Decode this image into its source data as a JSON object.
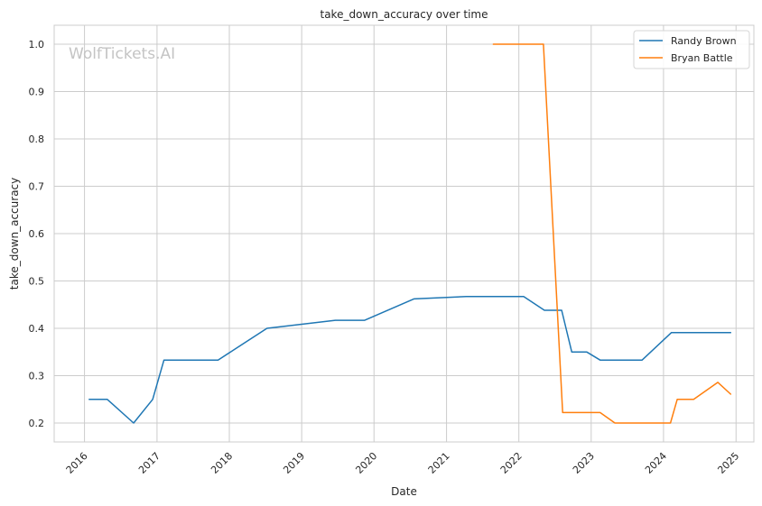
{
  "chart_data": {
    "type": "line",
    "title": "take_down_accuracy over time",
    "xlabel": "Date",
    "ylabel": "take_down_accuracy",
    "watermark": "WolfTickets.AI",
    "xlim": [
      "2015-08-01",
      "2025-04-01"
    ],
    "ylim": [
      0.16,
      1.04
    ],
    "x_ticks": [
      "2016",
      "2017",
      "2018",
      "2019",
      "2020",
      "2021",
      "2022",
      "2023",
      "2024",
      "2025"
    ],
    "y_ticks": [
      "0.2",
      "0.3",
      "0.4",
      "0.5",
      "0.6",
      "0.7",
      "0.8",
      "0.9",
      "1.0"
    ],
    "grid": true,
    "legend_position": "top-right",
    "series": [
      {
        "name": "Randy Brown",
        "color": "#1f77b4",
        "points": [
          [
            "2016-01-25",
            0.25
          ],
          [
            "2016-04-25",
            0.25
          ],
          [
            "2016-09-05",
            0.2
          ],
          [
            "2016-12-10",
            0.25
          ],
          [
            "2017-02-05",
            0.333
          ],
          [
            "2017-11-05",
            0.333
          ],
          [
            "2018-07-10",
            0.4
          ],
          [
            "2019-06-20",
            0.417
          ],
          [
            "2019-11-15",
            0.417
          ],
          [
            "2020-07-20",
            0.462
          ],
          [
            "2021-04-10",
            0.467
          ],
          [
            "2022-01-25",
            0.467
          ],
          [
            "2022-05-10",
            0.438
          ],
          [
            "2022-08-05",
            0.438
          ],
          [
            "2022-09-25",
            0.35
          ],
          [
            "2022-12-10",
            0.35
          ],
          [
            "2023-02-15",
            0.333
          ],
          [
            "2023-09-15",
            0.333
          ],
          [
            "2024-02-10",
            0.391
          ],
          [
            "2024-12-05",
            0.391
          ]
        ]
      },
      {
        "name": "Bryan Battle",
        "color": "#ff7f0e",
        "points": [
          [
            "2021-08-25",
            1.0
          ],
          [
            "2022-05-05",
            1.0
          ],
          [
            "2022-08-10",
            0.222
          ],
          [
            "2023-02-15",
            0.222
          ],
          [
            "2023-05-01",
            0.2
          ],
          [
            "2024-02-05",
            0.2
          ],
          [
            "2024-03-10",
            0.25
          ],
          [
            "2024-06-01",
            0.25
          ],
          [
            "2024-10-01",
            0.286
          ],
          [
            "2024-12-05",
            0.261
          ]
        ]
      }
    ]
  }
}
